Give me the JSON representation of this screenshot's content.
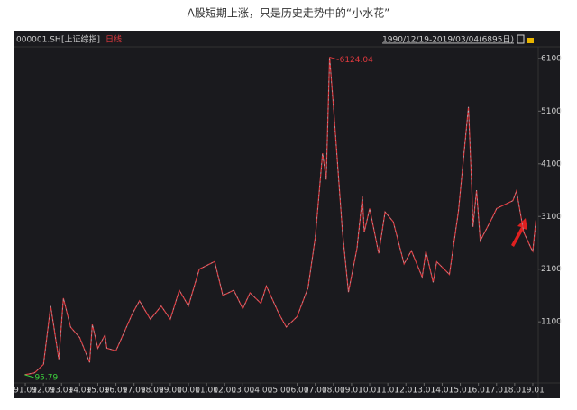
{
  "caption": "A股短期上涨，只是历史走势中的“小水花”",
  "chart_data": {
    "type": "line",
    "header": {
      "code": "000001.SH",
      "name": "[上证综指]",
      "period": "日线",
      "range": "1990/12/19-2019/03/04(6895日)"
    },
    "x": [
      1990.97,
      1991.5,
      1992.0,
      1992.4,
      1992.85,
      1993.1,
      1993.5,
      1994.0,
      1994.55,
      1994.7,
      1995.0,
      1995.4,
      1995.5,
      1996.0,
      1996.9,
      1997.3,
      1997.9,
      1998.5,
      1999.0,
      1999.5,
      2000.0,
      2000.6,
      2001.45,
      2001.9,
      2002.5,
      2003.0,
      2003.4,
      2004.0,
      2004.3,
      2005.0,
      2005.4,
      2006.0,
      2006.6,
      2007.0,
      2007.4,
      2007.6,
      2007.79,
      2008.0,
      2008.5,
      2008.83,
      2009.3,
      2009.6,
      2009.7,
      2010.0,
      2010.5,
      2010.85,
      2011.3,
      2011.9,
      2012.3,
      2012.9,
      2013.1,
      2013.5,
      2013.7,
      2014.4,
      2014.9,
      2015.45,
      2015.65,
      2015.7,
      2015.9,
      2016.1,
      2016.8,
      2017.0,
      2017.9,
      2018.1,
      2018.5,
      2018.9,
      2019.0,
      2019.17
    ],
    "series": [
      {
        "color": "#e0393e",
        "values": [
          95.79,
          130,
          290,
          1400,
          390,
          1550,
          1000,
          800,
          330,
          1050,
          600,
          850,
          600,
          550,
          1250,
          1500,
          1150,
          1400,
          1150,
          1700,
          1400,
          2100,
          2245,
          1600,
          1700,
          1350,
          1650,
          1450,
          1780,
          1250,
          1000,
          1200,
          1750,
          2700,
          4300,
          3800,
          6124.04,
          5200,
          2800,
          1664,
          2500,
          3478,
          2800,
          3250,
          2400,
          3186,
          3000,
          2200,
          2450,
          1950,
          2440,
          1850,
          2240,
          2000,
          3200,
          5178,
          3500,
          2900,
          3600,
          2638,
          3100,
          3250,
          3400,
          3587,
          2800,
          2500,
          2440,
          3027
        ]
      }
    ],
    "annotations": [
      {
        "x": 2007.79,
        "y": 6124.04,
        "color": "#e0393e"
      },
      {
        "x": 1990.97,
        "y": 95.79,
        "color": "#3ccf3c"
      }
    ],
    "xlim": [
      1990.5,
      2019.3
    ],
    "xticks": [
      {
        "value": 1991,
        "label": "91.01"
      },
      {
        "value": 1992,
        "label": "92.01"
      },
      {
        "value": 1993,
        "label": "93.01"
      },
      {
        "value": 1994,
        "label": "94.01"
      },
      {
        "value": 1995,
        "label": "95.01"
      },
      {
        "value": 1996,
        "label": "96.01"
      },
      {
        "value": 1997,
        "label": "97.01"
      },
      {
        "value": 1998,
        "label": "98.01"
      },
      {
        "value": 1999,
        "label": "99.01"
      },
      {
        "value": 2000,
        "label": "00.01"
      },
      {
        "value": 2001,
        "label": "01.01"
      },
      {
        "value": 2002,
        "label": "02.01"
      },
      {
        "value": 2003,
        "label": "03.01"
      },
      {
        "value": 2004,
        "label": "04.01"
      },
      {
        "value": 2005,
        "label": "05.01"
      },
      {
        "value": 2006,
        "label": "06.01"
      },
      {
        "value": 2007,
        "label": "07.01"
      },
      {
        "value": 2008,
        "label": "08.01"
      },
      {
        "value": 2009,
        "label": "09.01"
      },
      {
        "value": 2010,
        "label": "10.01"
      },
      {
        "value": 2011,
        "label": "11.01"
      },
      {
        "value": 2012,
        "label": "12.01"
      },
      {
        "value": 2013,
        "label": "13.01"
      },
      {
        "value": 2014,
        "label": "14.01"
      },
      {
        "value": 2015,
        "label": "15.01"
      },
      {
        "value": 2016,
        "label": "16.01"
      },
      {
        "value": 2017,
        "label": "17.01"
      },
      {
        "value": 2018,
        "label": "18.01"
      },
      {
        "value": 2019,
        "label": "19.01"
      }
    ],
    "ylim": [
      -60,
      6320
    ],
    "yticks": [
      1100,
      2100,
      3100,
      4100,
      5100,
      6100
    ]
  }
}
